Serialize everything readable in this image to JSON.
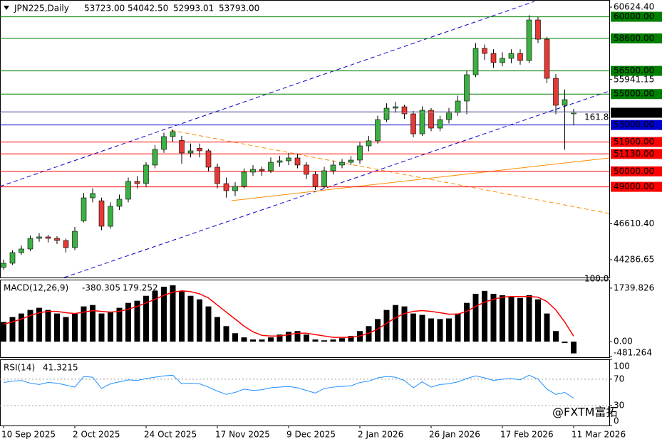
{
  "chart_data": [
    {
      "type": "candlestick",
      "title": "JPN225,Daily",
      "ohlc_labels": [
        "53723.00",
        "54042.50",
        "52993.01",
        "53793.00"
      ],
      "categories": [
        "10 Sep 2025",
        null,
        null,
        null,
        null,
        null,
        null,
        null,
        "2 Oct 2025",
        null,
        null,
        null,
        null,
        null,
        null,
        null,
        "24 Oct 2025",
        null,
        null,
        null,
        null,
        null,
        null,
        null,
        "17 Nov 2025",
        null,
        null,
        null,
        null,
        null,
        null,
        null,
        "9 Dec 2025",
        null,
        null,
        null,
        null,
        null,
        null,
        null,
        "2 Jan 2026",
        null,
        null,
        null,
        null,
        null,
        null,
        null,
        "26 Jan 2026",
        null,
        null,
        null,
        null,
        null,
        null,
        null,
        "17 Feb 2026",
        null,
        null,
        null,
        null,
        null,
        null,
        null,
        "11 Mar 2026"
      ],
      "open": [
        43800,
        44058,
        44748,
        44978,
        45668,
        45760,
        45668,
        45530,
        45070,
        46800,
        48290,
        48100,
        46450,
        47740,
        48200,
        49350,
        49212,
        50408,
        51420,
        52250,
        52000,
        51190,
        51500,
        51330,
        50270,
        49210,
        48750,
        49030,
        49950,
        50130,
        50040,
        50590,
        50685,
        50870,
        50410,
        49810,
        49030,
        50040,
        50410,
        50590,
        50730,
        51650,
        51975,
        53350,
        54090,
        54180,
        53720,
        52430,
        53950,
        52800,
        53350,
        53810,
        54550,
        56250,
        57955,
        57630,
        57035,
        57310,
        57630,
        57170,
        59795,
        58550,
        56020,
        54275,
        53723
      ],
      "high": [
        44300,
        44900,
        45200,
        45850,
        46000,
        45900,
        45800,
        45650,
        46400,
        48600,
        48900,
        48300,
        48000,
        48500,
        49600,
        49700,
        50600,
        51700,
        52500,
        52700,
        52300,
        51800,
        51800,
        51450,
        50500,
        49600,
        49300,
        50200,
        50400,
        50300,
        50900,
        51000,
        51200,
        51150,
        50600,
        50000,
        50300,
        50700,
        50800,
        51000,
        51900,
        52300,
        53600,
        54400,
        54500,
        54300,
        53900,
        54200,
        54100,
        53600,
        54100,
        54900,
        56500,
        58300,
        58200,
        57900,
        57700,
        57900,
        57900,
        60100,
        60000,
        58700,
        56300,
        55300,
        54042.5
      ],
      "low": [
        43650,
        43950,
        44600,
        44850,
        45450,
        45400,
        45300,
        44750,
        44900,
        46700,
        48000,
        46200,
        46300,
        47500,
        48000,
        48900,
        49000,
        50200,
        51200,
        51900,
        50500,
        50900,
        50900,
        50000,
        48900,
        48300,
        48400,
        48900,
        49700,
        49700,
        49900,
        50300,
        50400,
        50200,
        49500,
        48800,
        48900,
        49800,
        50200,
        50400,
        50500,
        51300,
        51800,
        53200,
        53800,
        53400,
        52200,
        52300,
        52600,
        52600,
        53100,
        53600,
        53700,
        56100,
        57200,
        56700,
        56800,
        57000,
        56900,
        57000,
        58300,
        55700,
        53700,
        51400,
        52993.01
      ],
      "close": [
        44058,
        44748,
        44978,
        45668,
        45760,
        45668,
        45530,
        45070,
        46127,
        48290,
        48567,
        46450,
        47740,
        48200,
        49350,
        49212,
        50408,
        51420,
        52250,
        52570,
        51190,
        51330,
        51330,
        50270,
        49210,
        48750,
        49030,
        49950,
        50130,
        50040,
        50590,
        50685,
        50870,
        50410,
        49810,
        49030,
        50040,
        50410,
        50590,
        50730,
        51650,
        51975,
        53350,
        54090,
        54180,
        53720,
        52430,
        53950,
        52800,
        53350,
        53810,
        54550,
        56250,
        57955,
        57630,
        57035,
        57310,
        57630,
        57170,
        59795,
        58550,
        56020,
        54275,
        54640,
        53793
      ],
      "up_color": "#3cb043",
      "down_color": "#e53935",
      "ylim": [
        43136,
        61085
      ],
      "yticks": [
        {
          "value": 60624.4,
          "label": "60624.40"
        },
        {
          "value": 55941.15,
          "label": "55941.15"
        },
        {
          "value": 46610.4,
          "label": "46610.40"
        },
        {
          "value": 44286.65,
          "label": "44286.65"
        }
      ],
      "levels": [
        {
          "value": 60000,
          "label": "60000.00",
          "color": "#008000"
        },
        {
          "value": 58600,
          "label": "58600.00",
          "color": "#008000"
        },
        {
          "value": 56500,
          "label": "56500.00",
          "color": "#008000"
        },
        {
          "value": 55000,
          "label": "55000.00",
          "color": "#008000"
        },
        {
          "value": 53000,
          "label": "53000.00",
          "color": "#0000cc"
        },
        {
          "value": 51900,
          "label": "51900.00",
          "color": "#ff0000"
        },
        {
          "value": 51130,
          "label": "51130.00",
          "color": "#ff0000"
        },
        {
          "value": 50000,
          "label": "50000.00",
          "color": "#ff0000"
        },
        {
          "value": 49000,
          "label": "49000.00",
          "color": "#ff0000"
        }
      ],
      "last_price": {
        "value": 53793,
        "label": "53793.00"
      },
      "annotations": [
        "161.8",
        "100.0"
      ]
    },
    {
      "type": "macd",
      "title": "MACD(12,26,9)",
      "value_labels": [
        "-380.305",
        "179.252"
      ],
      "histogram": [
        640,
        800,
        915,
        1030,
        1100,
        1030,
        915,
        800,
        915,
        1145,
        1190,
        915,
        960,
        1100,
        1260,
        1330,
        1490,
        1650,
        1785,
        1830,
        1650,
        1490,
        1375,
        1145,
        800,
        505,
        275,
        140,
        70,
        70,
        140,
        230,
        320,
        345,
        230,
        70,
        45,
        70,
        115,
        185,
        345,
        505,
        735,
        1030,
        1190,
        1145,
        915,
        870,
        755,
        735,
        755,
        915,
        1260,
        1555,
        1650,
        1555,
        1510,
        1465,
        1420,
        1510,
        1375,
        915,
        345,
        -45,
        -380.305
      ],
      "signal": [
        570,
        640,
        735,
        850,
        940,
        985,
        985,
        940,
        915,
        960,
        1010,
        985,
        960,
        985,
        1055,
        1145,
        1260,
        1375,
        1510,
        1605,
        1650,
        1625,
        1555,
        1420,
        1190,
        960,
        735,
        505,
        320,
        205,
        185,
        185,
        230,
        275,
        275,
        230,
        185,
        140,
        140,
        140,
        185,
        275,
        410,
        595,
        780,
        915,
        985,
        1010,
        985,
        940,
        895,
        895,
        985,
        1145,
        1285,
        1375,
        1445,
        1465,
        1465,
        1465,
        1445,
        1305,
        1030,
        640,
        179.252
      ],
      "histogram_color": "#000000",
      "signal_color": "#ff0000",
      "ylim": [
        -504,
        1992
      ],
      "yticks": [
        {
          "value": 1739.826,
          "label": "1739.826"
        },
        {
          "value": 0,
          "label": "0.00"
        },
        {
          "value": -481.264,
          "label": "-481.264"
        }
      ]
    },
    {
      "type": "line",
      "title": "RSI(14)",
      "value_labels": [
        "41.3215"
      ],
      "values": [
        65,
        67,
        68,
        64,
        62,
        65,
        64,
        61,
        58,
        74,
        73,
        56,
        63,
        66,
        69,
        68,
        71,
        73,
        75,
        76,
        63,
        64,
        63,
        58,
        52,
        47,
        50,
        55,
        53,
        54,
        57,
        58,
        59,
        57,
        53,
        49,
        56,
        58,
        59,
        60,
        65,
        67,
        72,
        74,
        73,
        68,
        57,
        66,
        58,
        62,
        63,
        66,
        71,
        75,
        72,
        68,
        70,
        71,
        69,
        76,
        70,
        55,
        47,
        50,
        41.3215
      ],
      "color": "#1e90ff",
      "ylim": [
        0,
        100
      ],
      "yticks": [
        100,
        70,
        30,
        0
      ],
      "levels": [
        70,
        30
      ]
    }
  ],
  "watermark": "@FXTM富拓"
}
